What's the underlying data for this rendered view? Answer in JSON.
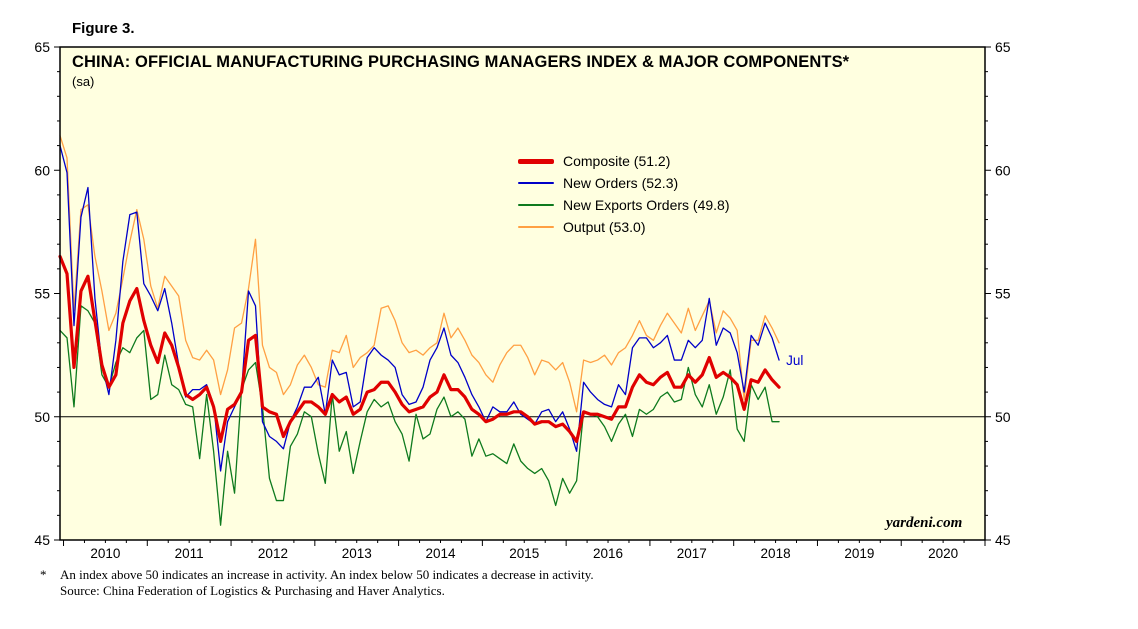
{
  "figure_label": "Figure 3.",
  "title": "CHINA: OFFICIAL MANUFACTURING PURCHASING MANAGERS INDEX & MAJOR COMPONENTS*",
  "subtitle": "(sa)",
  "watermark": "yardeni.com",
  "annotation": {
    "text": "Jul",
    "series": "New Orders",
    "color": "#0000CC"
  },
  "footnote": {
    "marker": "*",
    "line1": "An index above 50 indicates an increase in activity. An index below 50 indicates a decrease in activity.",
    "line2": "Source: China Federation of Logistics & Purchasing and Haver Analytics."
  },
  "colors": {
    "plot_bg": "#FFFFE0",
    "axis": "#000000"
  },
  "axes": {
    "y_min": 45,
    "y_max": 65,
    "y_ticks": [
      45,
      50,
      55,
      60,
      65
    ],
    "reference_line": 50,
    "x_year_labels": [
      2010,
      2011,
      2012,
      2013,
      2014,
      2015,
      2016,
      2017,
      2018,
      2019,
      2020
    ]
  },
  "chart_data": {
    "type": "line",
    "title": "CHINA: OFFICIAL MANUFACTURING PURCHASING MANAGERS INDEX & MAJOR COMPONENTS*",
    "subtitle": "(sa)",
    "xlabel": "",
    "ylabel": "",
    "ylim": [
      45,
      65
    ],
    "x_start": 2009.958,
    "x_end": 2021.0,
    "start_month": "2009-12",
    "frequency": "monthly",
    "legend_position": "inside-top-center",
    "grid": false,
    "series": [
      {
        "name": "Composite",
        "label": "Composite (51.2)",
        "color": "#E00000",
        "width": 3.2,
        "latest": 51.2,
        "values": [
          56.5,
          55.8,
          52.0,
          55.1,
          55.7,
          53.9,
          52.1,
          51.2,
          51.7,
          53.8,
          54.7,
          55.2,
          53.9,
          52.9,
          52.2,
          53.4,
          52.9,
          52.0,
          50.9,
          50.7,
          50.9,
          51.2,
          50.4,
          49.0,
          50.3,
          50.5,
          51.0,
          53.1,
          53.3,
          50.4,
          50.2,
          50.1,
          49.2,
          49.8,
          50.2,
          50.6,
          50.6,
          50.4,
          50.1,
          50.9,
          50.6,
          50.8,
          50.1,
          50.3,
          51.0,
          51.1,
          51.4,
          51.4,
          51.0,
          50.5,
          50.2,
          50.3,
          50.4,
          50.8,
          51.0,
          51.7,
          51.1,
          51.1,
          50.8,
          50.3,
          50.1,
          49.8,
          49.9,
          50.1,
          50.1,
          50.2,
          50.2,
          50.0,
          49.7,
          49.8,
          49.8,
          49.6,
          49.7,
          49.4,
          49.0,
          50.2,
          50.1,
          50.1,
          50.0,
          49.9,
          50.4,
          50.4,
          51.2,
          51.7,
          51.4,
          51.3,
          51.6,
          51.8,
          51.2,
          51.2,
          51.7,
          51.4,
          51.7,
          52.4,
          51.6,
          51.8,
          51.6,
          51.3,
          50.3,
          51.5,
          51.4,
          51.9,
          51.5,
          51.2
        ]
      },
      {
        "name": "New Orders",
        "label": "New Orders (52.3)",
        "color": "#0000C8",
        "width": 1.3,
        "latest": 52.3,
        "values": [
          61.0,
          59.9,
          53.7,
          58.1,
          59.3,
          54.8,
          52.1,
          50.9,
          53.1,
          56.3,
          58.2,
          58.3,
          55.4,
          54.9,
          54.3,
          55.2,
          53.8,
          52.1,
          50.8,
          51.1,
          51.1,
          51.3,
          50.5,
          47.8,
          49.8,
          50.4,
          51.0,
          55.1,
          54.5,
          49.8,
          49.2,
          49.0,
          48.7,
          49.8,
          50.4,
          51.2,
          51.2,
          51.6,
          50.1,
          52.3,
          51.7,
          51.8,
          50.4,
          50.6,
          52.4,
          52.8,
          52.5,
          52.3,
          52.0,
          50.9,
          50.5,
          50.6,
          51.2,
          52.3,
          52.8,
          53.6,
          52.5,
          52.2,
          51.6,
          50.9,
          50.4,
          49.8,
          50.4,
          50.2,
          50.2,
          50.6,
          50.1,
          49.9,
          49.7,
          50.2,
          50.3,
          49.8,
          50.2,
          49.5,
          48.6,
          51.4,
          51.0,
          50.7,
          50.5,
          50.4,
          51.3,
          50.9,
          52.8,
          53.2,
          53.2,
          52.8,
          53.0,
          53.3,
          52.3,
          52.3,
          53.1,
          52.8,
          53.1,
          54.8,
          52.9,
          53.6,
          53.4,
          52.6,
          51.0,
          53.3,
          52.9,
          53.8,
          53.2,
          52.3
        ]
      },
      {
        "name": "New Exports Orders",
        "label": "New Exports Orders (49.8)",
        "color": "#0E7A1E",
        "width": 1.3,
        "latest": 49.8,
        "values": [
          53.5,
          53.2,
          50.4,
          54.5,
          54.3,
          53.8,
          51.7,
          51.2,
          52.2,
          52.8,
          52.6,
          53.2,
          53.5,
          50.7,
          50.9,
          52.5,
          51.3,
          51.1,
          50.5,
          50.4,
          48.3,
          50.9,
          48.6,
          45.6,
          48.6,
          46.9,
          51.1,
          51.9,
          52.2,
          50.4,
          47.5,
          46.6,
          46.6,
          48.8,
          49.3,
          50.2,
          50.0,
          48.5,
          47.3,
          50.9,
          48.6,
          49.4,
          47.7,
          49.0,
          50.2,
          50.7,
          50.4,
          50.6,
          49.8,
          49.3,
          48.2,
          50.1,
          49.1,
          49.3,
          50.3,
          50.8,
          50.0,
          50.2,
          49.9,
          48.4,
          49.1,
          48.4,
          48.5,
          48.3,
          48.1,
          48.9,
          48.2,
          47.9,
          47.7,
          47.9,
          47.4,
          46.4,
          47.5,
          46.9,
          47.4,
          50.2,
          50.1,
          50.0,
          49.6,
          49.0,
          49.7,
          50.1,
          49.2,
          50.3,
          50.1,
          50.3,
          50.8,
          51.0,
          50.6,
          50.7,
          52.0,
          50.9,
          50.4,
          51.3,
          50.1,
          50.8,
          51.9,
          49.5,
          49.0,
          51.3,
          50.7,
          51.2,
          49.8,
          49.8
        ]
      },
      {
        "name": "Output",
        "label": "Output (53.0)",
        "color": "#FFA043",
        "width": 1.3,
        "latest": 53.0,
        "values": [
          61.4,
          60.5,
          54.3,
          58.4,
          58.6,
          56.5,
          55.1,
          53.5,
          54.2,
          55.6,
          57.1,
          58.4,
          57.2,
          55.3,
          54.4,
          55.7,
          55.3,
          54.9,
          53.1,
          52.4,
          52.3,
          52.7,
          52.3,
          50.9,
          51.9,
          53.6,
          53.8,
          55.2,
          57.2,
          52.9,
          52.0,
          51.8,
          50.9,
          51.3,
          52.1,
          52.5,
          52.0,
          51.3,
          51.2,
          52.7,
          52.6,
          53.3,
          52.0,
          52.4,
          52.6,
          52.9,
          54.4,
          54.5,
          53.9,
          53.0,
          52.6,
          52.7,
          52.5,
          52.8,
          53.0,
          54.2,
          53.2,
          53.6,
          53.1,
          52.5,
          52.2,
          51.7,
          51.4,
          52.1,
          52.6,
          52.9,
          52.9,
          52.4,
          51.7,
          52.3,
          52.2,
          51.9,
          52.2,
          51.4,
          50.2,
          52.3,
          52.2,
          52.3,
          52.5,
          52.1,
          52.6,
          52.8,
          53.3,
          53.9,
          53.3,
          53.1,
          53.7,
          54.2,
          53.8,
          53.4,
          54.4,
          53.5,
          54.1,
          54.7,
          53.4,
          54.3,
          54.0,
          53.5,
          50.7,
          53.1,
          53.1,
          54.1,
          53.6,
          53.0
        ]
      }
    ]
  }
}
